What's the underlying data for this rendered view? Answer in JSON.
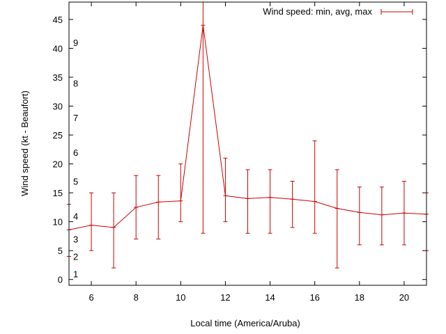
{
  "chart_data": {
    "type": "line",
    "xlabel": "Local time (America/Aruba)",
    "ylabel": "Wind speed (kt - Beaufort)",
    "xlim": [
      5,
      21
    ],
    "ylim": [
      -1,
      48
    ],
    "x_ticks": [
      6,
      8,
      10,
      12,
      14,
      16,
      18,
      20
    ],
    "y_ticks": [
      0,
      5,
      10,
      15,
      20,
      25,
      30,
      35,
      40,
      45
    ],
    "beaufort_labels": [
      {
        "label": "1",
        "value": 1
      },
      {
        "label": "2",
        "value": 4
      },
      {
        "label": "3",
        "value": 7
      },
      {
        "label": "4",
        "value": 11
      },
      {
        "label": "5",
        "value": 17
      },
      {
        "label": "6",
        "value": 22
      },
      {
        "label": "7",
        "value": 28
      },
      {
        "label": "8",
        "value": 34
      },
      {
        "label": "9",
        "value": 41
      }
    ],
    "legend": {
      "label": "Wind speed: min, avg, max",
      "position": "top-right"
    },
    "grid": false,
    "series": [
      {
        "name": "Wind speed: min, avg, max",
        "color": "#cc0000",
        "x": [
          5,
          6,
          7,
          8,
          9,
          10,
          11,
          12,
          13,
          14,
          15,
          16,
          17,
          18,
          19,
          20,
          21
        ],
        "avg": [
          8.6,
          9.4,
          9.0,
          12.5,
          13.4,
          13.6,
          44.0,
          14.5,
          14.0,
          14.2,
          13.9,
          13.5,
          12.3,
          11.6,
          11.2,
          11.5,
          11.3
        ],
        "min": [
          4,
          5,
          2,
          7,
          7,
          10,
          8,
          10,
          8,
          8,
          9,
          8,
          2,
          6,
          6,
          6,
          5
        ],
        "max": [
          13,
          15,
          15,
          18,
          18,
          20,
          48,
          21,
          19,
          19,
          17,
          24,
          19,
          16,
          16,
          17,
          15
        ]
      }
    ]
  }
}
